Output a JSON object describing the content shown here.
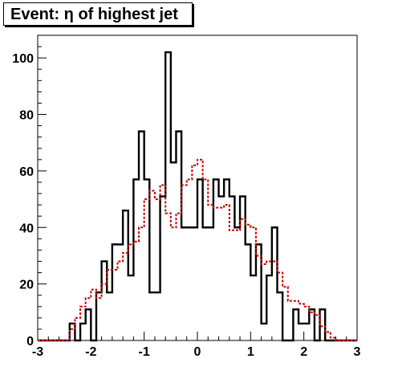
{
  "chart_data": {
    "type": "histogram",
    "title": "Event: η of highest jet",
    "xlabel": "",
    "ylabel": "",
    "xlim": [
      -3,
      3
    ],
    "ylim": [
      0,
      108
    ],
    "x_ticks": [
      -3,
      -2,
      -1,
      0,
      1,
      2,
      3
    ],
    "y_ticks": [
      0,
      20,
      40,
      60,
      80,
      100
    ],
    "bin_edges": [
      -3.0,
      -2.9,
      -2.8,
      -2.7,
      -2.6,
      -2.5,
      -2.4,
      -2.3,
      -2.2,
      -2.1,
      -2.0,
      -1.9,
      -1.8,
      -1.7,
      -1.6,
      -1.5,
      -1.4,
      -1.3,
      -1.2,
      -1.1,
      -1.0,
      -0.9,
      -0.8,
      -0.7,
      -0.6,
      -0.5,
      -0.4,
      -0.3,
      -0.2,
      -0.1,
      0.0,
      0.1,
      0.2,
      0.3,
      0.4,
      0.5,
      0.6,
      0.7,
      0.8,
      0.9,
      1.0,
      1.1,
      1.2,
      1.3,
      1.4,
      1.5,
      1.6,
      1.7,
      1.8,
      1.9,
      2.0,
      2.1,
      2.2,
      2.3,
      2.4,
      2.5,
      2.6,
      2.7,
      2.8,
      2.9,
      3.0
    ],
    "series": [
      {
        "style": "solid",
        "color": "#000000",
        "values": [
          0,
          0,
          0,
          0,
          0,
          0,
          6,
          0,
          6,
          11,
          0,
          17,
          28,
          17,
          34,
          34,
          46,
          23,
          57,
          74,
          57,
          17,
          17,
          51,
          102,
          63,
          74,
          40,
          40,
          40,
          57,
          40,
          40,
          57,
          51,
          57,
          51,
          40,
          51,
          34,
          23,
          34,
          6,
          23,
          40,
          17,
          0,
          0,
          11,
          6,
          6,
          11,
          0,
          11,
          0,
          0,
          0,
          0,
          0,
          0
        ]
      },
      {
        "style": "dashed",
        "color": "#cc0000",
        "values": [
          0,
          0,
          0,
          0,
          0,
          0,
          4,
          8,
          12,
          15,
          18,
          15,
          20,
          25,
          25,
          28,
          31,
          34,
          35,
          40,
          50,
          53,
          50,
          55,
          45,
          40,
          45,
          55,
          57,
          62,
          64,
          57,
          48,
          47,
          47,
          48,
          39,
          39,
          43,
          41,
          40,
          30,
          27,
          28,
          28,
          24,
          19,
          14,
          14,
          13,
          12,
          10,
          9,
          5,
          3,
          1,
          0,
          0,
          0,
          0
        ]
      }
    ]
  }
}
